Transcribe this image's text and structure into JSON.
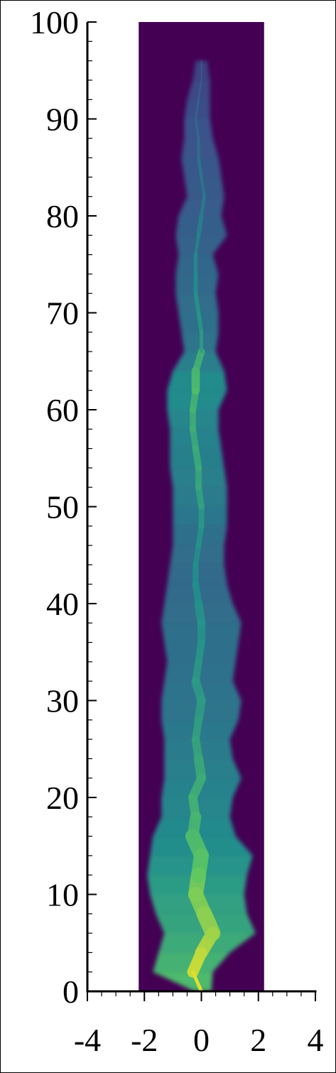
{
  "chart_data": {
    "type": "heatmap",
    "title": "",
    "xlabel": "",
    "ylabel": "",
    "xlim": [
      -4,
      4
    ],
    "ylim": [
      0,
      100
    ],
    "x_ticks": [
      -4,
      -2,
      0,
      2,
      4
    ],
    "y_ticks": [
      0,
      10,
      20,
      30,
      40,
      50,
      60,
      70,
      80,
      90,
      100
    ],
    "x_tick_labels": [
      "-4",
      "-2",
      "0",
      "2",
      "4"
    ],
    "y_tick_labels": [
      "0",
      "10",
      "20",
      "30",
      "40",
      "50",
      "60",
      "70",
      "80",
      "90",
      "100"
    ],
    "x_minor_step": 0.5,
    "y_minor_step": 2,
    "domain_x": [
      -2.2,
      2.2
    ],
    "domain_y": [
      0,
      100
    ],
    "colormap": [
      "#440154",
      "#3b528b",
      "#21918c",
      "#5ec962",
      "#fde725"
    ],
    "background_color": "#440154",
    "plume_profile": [
      {
        "y": 0,
        "center": 0.0,
        "left": -0.25,
        "right": 0.35,
        "level": 1.0
      },
      {
        "y": 2,
        "center": -0.3,
        "left": -1.7,
        "right": 0.4,
        "level": 0.95
      },
      {
        "y": 4,
        "center": 0.0,
        "left": -1.5,
        "right": 1.0,
        "level": 0.9
      },
      {
        "y": 6,
        "center": 0.4,
        "left": -1.3,
        "right": 1.9,
        "level": 0.85
      },
      {
        "y": 8,
        "center": 0.1,
        "left": -1.6,
        "right": 1.6,
        "level": 0.82
      },
      {
        "y": 10,
        "center": -0.2,
        "left": -1.8,
        "right": 1.5,
        "level": 0.8
      },
      {
        "y": 12,
        "center": -0.1,
        "left": -1.9,
        "right": 1.6,
        "level": 0.75
      },
      {
        "y": 14,
        "center": 0.0,
        "left": -1.8,
        "right": 1.8,
        "level": 0.72
      },
      {
        "y": 16,
        "center": -0.3,
        "left": -1.7,
        "right": 1.2,
        "level": 0.68
      },
      {
        "y": 18,
        "center": -0.2,
        "left": -1.4,
        "right": 1.0,
        "level": 0.66
      },
      {
        "y": 20,
        "center": -0.3,
        "left": -1.4,
        "right": 1.1,
        "level": 0.64
      },
      {
        "y": 22,
        "center": 0.0,
        "left": -1.3,
        "right": 1.4,
        "level": 0.62
      },
      {
        "y": 24,
        "center": -0.1,
        "left": -1.3,
        "right": 1.1,
        "level": 0.6
      },
      {
        "y": 26,
        "center": -0.2,
        "left": -1.3,
        "right": 1.0,
        "level": 0.58
      },
      {
        "y": 28,
        "center": -0.1,
        "left": -1.4,
        "right": 1.3,
        "level": 0.56
      },
      {
        "y": 30,
        "center": 0.0,
        "left": -1.4,
        "right": 1.4,
        "level": 0.55
      },
      {
        "y": 32,
        "center": -0.2,
        "left": -1.3,
        "right": 1.1,
        "level": 0.54
      },
      {
        "y": 34,
        "center": -0.1,
        "left": -1.2,
        "right": 1.2,
        "level": 0.53
      },
      {
        "y": 36,
        "center": 0.0,
        "left": -1.3,
        "right": 1.3,
        "level": 0.52
      },
      {
        "y": 38,
        "center": 0.0,
        "left": -1.4,
        "right": 1.4,
        "level": 0.52
      },
      {
        "y": 40,
        "center": -0.1,
        "left": -1.3,
        "right": 1.1,
        "level": 0.5
      },
      {
        "y": 42,
        "center": -0.2,
        "left": -1.2,
        "right": 0.9,
        "level": 0.5
      },
      {
        "y": 44,
        "center": -0.2,
        "left": -1.1,
        "right": 0.8,
        "level": 0.5
      },
      {
        "y": 46,
        "center": -0.1,
        "left": -1.0,
        "right": 0.8,
        "level": 0.52
      },
      {
        "y": 48,
        "center": 0.0,
        "left": -1.0,
        "right": 0.9,
        "level": 0.54
      },
      {
        "y": 50,
        "center": 0.0,
        "left": -1.0,
        "right": 0.9,
        "level": 0.58
      },
      {
        "y": 52,
        "center": -0.1,
        "left": -1.0,
        "right": 0.9,
        "level": 0.6
      },
      {
        "y": 54,
        "center": -0.1,
        "left": -1.1,
        "right": 0.8,
        "level": 0.62
      },
      {
        "y": 56,
        "center": -0.2,
        "left": -1.1,
        "right": 0.7,
        "level": 0.62
      },
      {
        "y": 58,
        "center": -0.3,
        "left": -1.1,
        "right": 0.6,
        "level": 0.64
      },
      {
        "y": 60,
        "center": -0.3,
        "left": -1.2,
        "right": 0.6,
        "level": 0.66
      },
      {
        "y": 62,
        "center": -0.2,
        "left": -1.2,
        "right": 0.9,
        "level": 0.7
      },
      {
        "y": 64,
        "center": -0.2,
        "left": -1.0,
        "right": 0.8,
        "level": 0.66
      },
      {
        "y": 66,
        "center": 0.0,
        "left": -0.6,
        "right": 0.5,
        "level": 0.56
      },
      {
        "y": 68,
        "center": 0.0,
        "left": -0.7,
        "right": 0.6,
        "level": 0.54
      },
      {
        "y": 70,
        "center": -0.1,
        "left": -0.8,
        "right": 0.6,
        "level": 0.52
      },
      {
        "y": 72,
        "center": -0.2,
        "left": -0.9,
        "right": 0.5,
        "level": 0.5
      },
      {
        "y": 74,
        "center": -0.2,
        "left": -0.9,
        "right": 0.6,
        "level": 0.48
      },
      {
        "y": 76,
        "center": -0.2,
        "left": -0.8,
        "right": 0.4,
        "level": 0.46
      },
      {
        "y": 78,
        "center": -0.1,
        "left": -0.9,
        "right": 0.9,
        "level": 0.44
      },
      {
        "y": 80,
        "center": 0.0,
        "left": -0.8,
        "right": 0.7,
        "level": 0.42
      },
      {
        "y": 82,
        "center": 0.1,
        "left": -0.5,
        "right": 0.8,
        "level": 0.4
      },
      {
        "y": 84,
        "center": 0.0,
        "left": -0.6,
        "right": 0.7,
        "level": 0.4
      },
      {
        "y": 86,
        "center": -0.1,
        "left": -0.7,
        "right": 0.6,
        "level": 0.38
      },
      {
        "y": 88,
        "center": -0.1,
        "left": -0.6,
        "right": 0.4,
        "level": 0.37
      },
      {
        "y": 90,
        "center": -0.2,
        "left": -0.6,
        "right": 0.3,
        "level": 0.35
      },
      {
        "y": 92,
        "center": -0.1,
        "left": -0.5,
        "right": 0.3,
        "level": 0.33
      },
      {
        "y": 94,
        "center": 0.0,
        "left": -0.3,
        "right": 0.3,
        "level": 0.3
      },
      {
        "y": 96,
        "center": 0.0,
        "left": -0.2,
        "right": 0.2,
        "level": 0.28
      }
    ]
  }
}
